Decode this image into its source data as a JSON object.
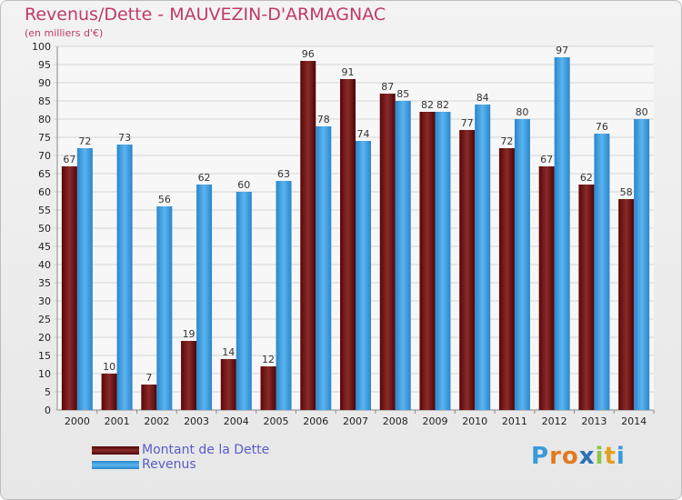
{
  "header": {
    "title": "Revenus/Dette - MAUVEZIN-D'ARMAGNAC",
    "subtitle": "(en milliers d'€)"
  },
  "legend": {
    "items": [
      {
        "label": "Montant de la Dette",
        "color": "#7a1010"
      },
      {
        "label": "Revenus",
        "color": "#3a9ee2"
      }
    ]
  },
  "logo": {
    "letters": [
      {
        "char": "P",
        "color": "#3a9ad9"
      },
      {
        "char": "r",
        "color": "#e07a20"
      },
      {
        "char": "o",
        "color": "#e07a20"
      },
      {
        "char": "x",
        "color": "#2a6fb8"
      },
      {
        "char": "i",
        "color": "#8cc63f"
      },
      {
        "char": "t",
        "color": "#e0a020"
      },
      {
        "char": "i",
        "color": "#3a9ad9"
      }
    ]
  },
  "chart_data": {
    "type": "bar",
    "title": "Revenus/Dette - MAUVEZIN-D'ARMAGNAC",
    "subtitle": "(en milliers d'€)",
    "categories": [
      "2000",
      "2001",
      "2002",
      "2003",
      "2004",
      "2005",
      "2006",
      "2007",
      "2008",
      "2009",
      "2010",
      "2011",
      "2012",
      "2013",
      "2014"
    ],
    "series": [
      {
        "name": "Montant de la Dette",
        "color": "#7a1010",
        "values": [
          67,
          10,
          7,
          19,
          14,
          12,
          96,
          91,
          87,
          82,
          77,
          72,
          67,
          62,
          58
        ]
      },
      {
        "name": "Revenus",
        "color": "#3a9ee2",
        "values": [
          72,
          73,
          56,
          62,
          60,
          63,
          78,
          74,
          85,
          82,
          84,
          80,
          97,
          76,
          80
        ]
      }
    ],
    "ylim": [
      0,
      100
    ],
    "ytick_step": 5,
    "grid": true,
    "legend_position": "bottom-left"
  }
}
